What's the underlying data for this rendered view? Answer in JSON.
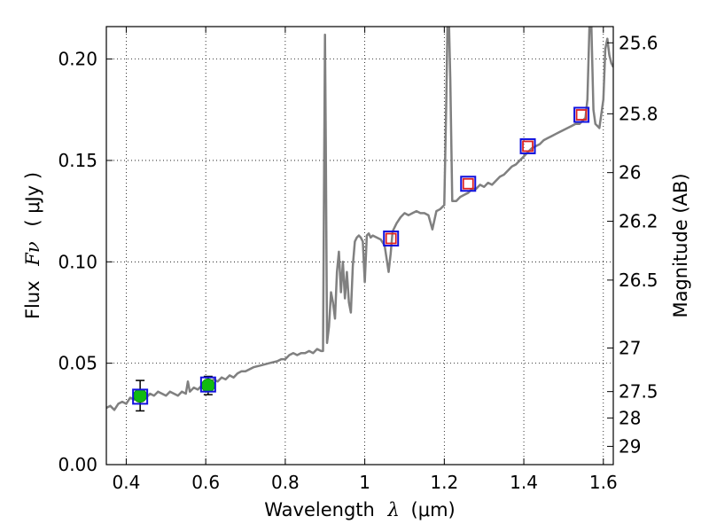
{
  "chart_data": {
    "type": "line",
    "xlabel": {
      "prefix": "Wavelength",
      "symbol": "λ",
      "unit": "(μm)"
    },
    "ylabel": {
      "prefix": "Flux",
      "symbol": "Fν",
      "unit": "( μJy )"
    },
    "y2label": "Magnitude (AB)",
    "xlim": [
      0.35,
      1.625
    ],
    "ylim": [
      0.0,
      0.216
    ],
    "grid": true,
    "x_ticks": [
      0.4,
      0.6,
      0.8,
      1.0,
      1.2,
      1.4,
      1.6
    ],
    "x_tick_labels": [
      "0.4",
      "0.6",
      "0.8",
      "1",
      "1.2",
      "1.4",
      "1.6"
    ],
    "y_ticks": [
      0.0,
      0.05,
      0.1,
      0.15,
      0.2
    ],
    "y_tick_labels": [
      "0.00",
      "0.05",
      "0.10",
      "0.15",
      "0.20"
    ],
    "mag_ticks": [
      {
        "label": "25.6",
        "flux": 0.208
      },
      {
        "label": "25.8",
        "flux": 0.173
      },
      {
        "label": "26",
        "flux": 0.144
      },
      {
        "label": "26.2",
        "flux": 0.12
      },
      {
        "label": "26.5",
        "flux": 0.091
      },
      {
        "label": "27",
        "flux": 0.0575
      },
      {
        "label": "27.5",
        "flux": 0.036
      },
      {
        "label": "28",
        "flux": 0.023
      },
      {
        "label": "29",
        "flux": 0.009
      }
    ],
    "series": [
      {
        "kind": "spectrum",
        "color": "#808080",
        "points": [
          [
            0.35,
            0.028
          ],
          [
            0.36,
            0.029
          ],
          [
            0.37,
            0.027
          ],
          [
            0.38,
            0.03
          ],
          [
            0.39,
            0.031
          ],
          [
            0.4,
            0.03
          ],
          [
            0.41,
            0.033
          ],
          [
            0.42,
            0.032
          ],
          [
            0.43,
            0.034
          ],
          [
            0.44,
            0.035
          ],
          [
            0.45,
            0.033
          ],
          [
            0.46,
            0.035
          ],
          [
            0.47,
            0.034
          ],
          [
            0.48,
            0.036
          ],
          [
            0.49,
            0.035
          ],
          [
            0.5,
            0.034
          ],
          [
            0.51,
            0.036
          ],
          [
            0.52,
            0.035
          ],
          [
            0.53,
            0.034
          ],
          [
            0.54,
            0.036
          ],
          [
            0.55,
            0.035
          ],
          [
            0.555,
            0.041
          ],
          [
            0.56,
            0.036
          ],
          [
            0.57,
            0.038
          ],
          [
            0.58,
            0.037
          ],
          [
            0.59,
            0.039
          ],
          [
            0.6,
            0.038
          ],
          [
            0.61,
            0.04
          ],
          [
            0.62,
            0.042
          ],
          [
            0.63,
            0.041
          ],
          [
            0.64,
            0.043
          ],
          [
            0.65,
            0.042
          ],
          [
            0.66,
            0.044
          ],
          [
            0.67,
            0.043
          ],
          [
            0.68,
            0.045
          ],
          [
            0.69,
            0.046
          ],
          [
            0.7,
            0.046
          ],
          [
            0.72,
            0.048
          ],
          [
            0.74,
            0.049
          ],
          [
            0.76,
            0.05
          ],
          [
            0.78,
            0.051
          ],
          [
            0.79,
            0.052
          ],
          [
            0.8,
            0.052
          ],
          [
            0.81,
            0.054
          ],
          [
            0.82,
            0.055
          ],
          [
            0.83,
            0.054
          ],
          [
            0.84,
            0.055
          ],
          [
            0.85,
            0.055
          ],
          [
            0.86,
            0.056
          ],
          [
            0.87,
            0.055
          ],
          [
            0.88,
            0.057
          ],
          [
            0.89,
            0.056
          ],
          [
            0.895,
            0.056
          ],
          [
            0.898,
            0.15
          ],
          [
            0.9,
            0.212
          ],
          [
            0.902,
            0.16
          ],
          [
            0.905,
            0.06
          ],
          [
            0.91,
            0.068
          ],
          [
            0.915,
            0.085
          ],
          [
            0.92,
            0.08
          ],
          [
            0.925,
            0.072
          ],
          [
            0.93,
            0.095
          ],
          [
            0.935,
            0.105
          ],
          [
            0.94,
            0.085
          ],
          [
            0.945,
            0.1
          ],
          [
            0.95,
            0.082
          ],
          [
            0.955,
            0.095
          ],
          [
            0.96,
            0.08
          ],
          [
            0.965,
            0.075
          ],
          [
            0.97,
            0.098
          ],
          [
            0.975,
            0.11
          ],
          [
            0.98,
            0.112
          ],
          [
            0.985,
            0.113
          ],
          [
            0.99,
            0.112
          ],
          [
            0.995,
            0.11
          ],
          [
            1.0,
            0.09
          ],
          [
            1.005,
            0.113
          ],
          [
            1.01,
            0.114
          ],
          [
            1.015,
            0.112
          ],
          [
            1.02,
            0.113
          ],
          [
            1.03,
            0.112
          ],
          [
            1.04,
            0.111
          ],
          [
            1.05,
            0.108
          ],
          [
            1.06,
            0.095
          ],
          [
            1.065,
            0.104
          ],
          [
            1.07,
            0.115
          ],
          [
            1.08,
            0.119
          ],
          [
            1.09,
            0.122
          ],
          [
            1.1,
            0.124
          ],
          [
            1.11,
            0.123
          ],
          [
            1.12,
            0.124
          ],
          [
            1.13,
            0.125
          ],
          [
            1.14,
            0.124
          ],
          [
            1.15,
            0.124
          ],
          [
            1.16,
            0.123
          ],
          [
            1.17,
            0.116
          ],
          [
            1.18,
            0.125
          ],
          [
            1.19,
            0.126
          ],
          [
            1.2,
            0.128
          ],
          [
            1.205,
            0.18
          ],
          [
            1.208,
            0.216
          ],
          [
            1.212,
            0.216
          ],
          [
            1.215,
            0.19
          ],
          [
            1.22,
            0.13
          ],
          [
            1.23,
            0.13
          ],
          [
            1.24,
            0.132
          ],
          [
            1.25,
            0.133
          ],
          [
            1.26,
            0.134
          ],
          [
            1.27,
            0.136
          ],
          [
            1.28,
            0.136
          ],
          [
            1.29,
            0.138
          ],
          [
            1.3,
            0.137
          ],
          [
            1.31,
            0.139
          ],
          [
            1.32,
            0.138
          ],
          [
            1.33,
            0.14
          ],
          [
            1.34,
            0.142
          ],
          [
            1.35,
            0.143
          ],
          [
            1.36,
            0.145
          ],
          [
            1.37,
            0.147
          ],
          [
            1.38,
            0.148
          ],
          [
            1.39,
            0.15
          ],
          [
            1.4,
            0.152
          ],
          [
            1.41,
            0.154
          ],
          [
            1.42,
            0.156
          ],
          [
            1.43,
            0.157
          ],
          [
            1.44,
            0.158
          ],
          [
            1.45,
            0.16
          ],
          [
            1.46,
            0.161
          ],
          [
            1.47,
            0.162
          ],
          [
            1.48,
            0.163
          ],
          [
            1.49,
            0.164
          ],
          [
            1.5,
            0.165
          ],
          [
            1.51,
            0.166
          ],
          [
            1.52,
            0.167
          ],
          [
            1.53,
            0.168
          ],
          [
            1.54,
            0.168
          ],
          [
            1.545,
            0.169
          ],
          [
            1.55,
            0.17
          ],
          [
            1.555,
            0.171
          ],
          [
            1.56,
            0.18
          ],
          [
            1.565,
            0.216
          ],
          [
            1.57,
            0.216
          ],
          [
            1.575,
            0.175
          ],
          [
            1.58,
            0.168
          ],
          [
            1.59,
            0.166
          ],
          [
            1.6,
            0.18
          ],
          [
            1.605,
            0.205
          ],
          [
            1.61,
            0.21
          ],
          [
            1.615,
            0.202
          ],
          [
            1.62,
            0.198
          ],
          [
            1.625,
            0.196
          ]
        ]
      },
      {
        "kind": "photometry",
        "marker": "green-circle",
        "color": "#11bb11",
        "points": [
          {
            "x": 0.435,
            "y": 0.034,
            "err": 0.0075
          },
          {
            "x": 0.606,
            "y": 0.039,
            "err": 0.0045
          }
        ]
      },
      {
        "kind": "model-photometry",
        "marker": "blue-square",
        "color": "#1111dd",
        "points": [
          {
            "x": 0.435,
            "y": 0.0335
          },
          {
            "x": 0.606,
            "y": 0.0395
          },
          {
            "x": 1.066,
            "y": 0.1115
          },
          {
            "x": 1.26,
            "y": 0.1385
          },
          {
            "x": 1.41,
            "y": 0.157
          },
          {
            "x": 1.545,
            "y": 0.1725
          }
        ]
      },
      {
        "kind": "measured-photometry",
        "marker": "red-square",
        "color": "#dd2222",
        "points": [
          {
            "x": 1.066,
            "y": 0.1115
          },
          {
            "x": 1.26,
            "y": 0.1385
          },
          {
            "x": 1.41,
            "y": 0.157
          },
          {
            "x": 1.545,
            "y": 0.1725
          }
        ]
      }
    ]
  }
}
